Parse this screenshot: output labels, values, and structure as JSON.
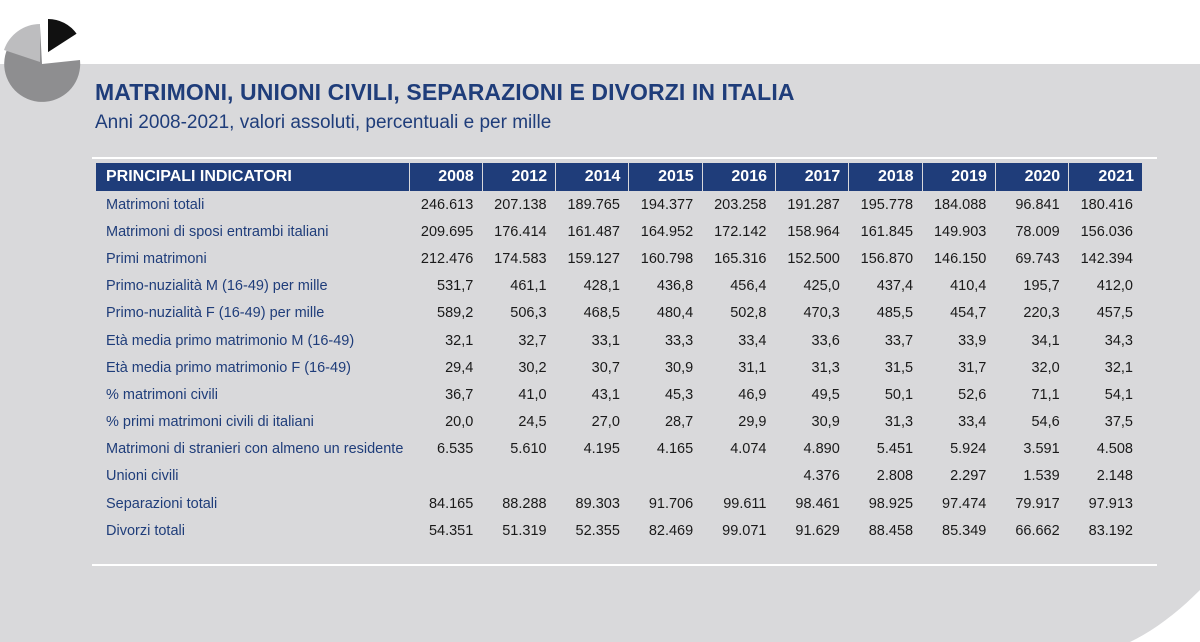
{
  "title": "MATRIMONI, UNIONI CIVILI, SEPARAZIONI E DIVORZI IN ITALIA",
  "subtitle": "Anni 2008-2021, valori assoluti, percentuali e per mille",
  "colors": {
    "navy": "#1f3d7a",
    "band": "#d9d9db"
  },
  "icons": {
    "logo": "pie-chart-icon"
  },
  "table": {
    "header_label": "PRINCIPALI INDICATORI",
    "years": [
      "2008",
      "2012",
      "2014",
      "2015",
      "2016",
      "2017",
      "2018",
      "2019",
      "2020",
      "2021"
    ],
    "rows": [
      {
        "label": "Matrimoni totali",
        "values": [
          "246.613",
          "207.138",
          "189.765",
          "194.377",
          "203.258",
          "191.287",
          "195.778",
          "184.088",
          "96.841",
          "180.416"
        ]
      },
      {
        "label": "Matrimoni di sposi entrambi italiani",
        "values": [
          "209.695",
          "176.414",
          "161.487",
          "164.952",
          "172.142",
          "158.964",
          "161.845",
          "149.903",
          "78.009",
          "156.036"
        ]
      },
      {
        "label": "Primi matrimoni",
        "values": [
          "212.476",
          "174.583",
          "159.127",
          "160.798",
          "165.316",
          "152.500",
          "156.870",
          "146.150",
          "69.743",
          "142.394"
        ]
      },
      {
        "label": "Primo-nuzialità M (16-49) per mille",
        "values": [
          "531,7",
          "461,1",
          "428,1",
          "436,8",
          "456,4",
          "425,0",
          "437,4",
          "410,4",
          "195,7",
          "412,0"
        ]
      },
      {
        "label": "Primo-nuzialità F (16-49) per mille",
        "values": [
          "589,2",
          "506,3",
          "468,5",
          "480,4",
          "502,8",
          "470,3",
          "485,5",
          "454,7",
          "220,3",
          "457,5"
        ]
      },
      {
        "label": "Età media primo matrimonio M (16-49)",
        "values": [
          "32,1",
          "32,7",
          "33,1",
          "33,3",
          "33,4",
          "33,6",
          "33,7",
          "33,9",
          "34,1",
          "34,3"
        ]
      },
      {
        "label": "Età media primo matrimonio F (16-49)",
        "values": [
          "29,4",
          "30,2",
          "30,7",
          "30,9",
          "31,1",
          "31,3",
          "31,5",
          "31,7",
          "32,0",
          "32,1"
        ]
      },
      {
        "label": "% matrimoni civili",
        "values": [
          "36,7",
          "41,0",
          "43,1",
          "45,3",
          "46,9",
          "49,5",
          "50,1",
          "52,6",
          "71,1",
          "54,1"
        ]
      },
      {
        "label": "% primi matrimoni civili di italiani",
        "values": [
          "20,0",
          "24,5",
          "27,0",
          "28,7",
          "29,9",
          "30,9",
          "31,3",
          "33,4",
          "54,6",
          "37,5"
        ]
      },
      {
        "label": "Matrimoni di stranieri con almeno un residente",
        "values": [
          "6.535",
          "5.610",
          "4.195",
          "4.165",
          "4.074",
          "4.890",
          "5.451",
          "5.924",
          "3.591",
          "4.508"
        ]
      },
      {
        "label": "Unioni civili",
        "values": [
          "",
          "",
          "",
          "",
          "",
          "4.376",
          "2.808",
          "2.297",
          "1.539",
          "2.148"
        ]
      },
      {
        "label": "Separazioni totali",
        "values": [
          "84.165",
          "88.288",
          "89.303",
          "91.706",
          "99.611",
          "98.461",
          "98.925",
          "97.474",
          "79.917",
          "97.913"
        ]
      },
      {
        "label": "Divorzi totali",
        "values": [
          "54.351",
          "51.319",
          "52.355",
          "82.469",
          "99.071",
          "91.629",
          "88.458",
          "85.349",
          "66.662",
          "83.192"
        ]
      }
    ]
  }
}
